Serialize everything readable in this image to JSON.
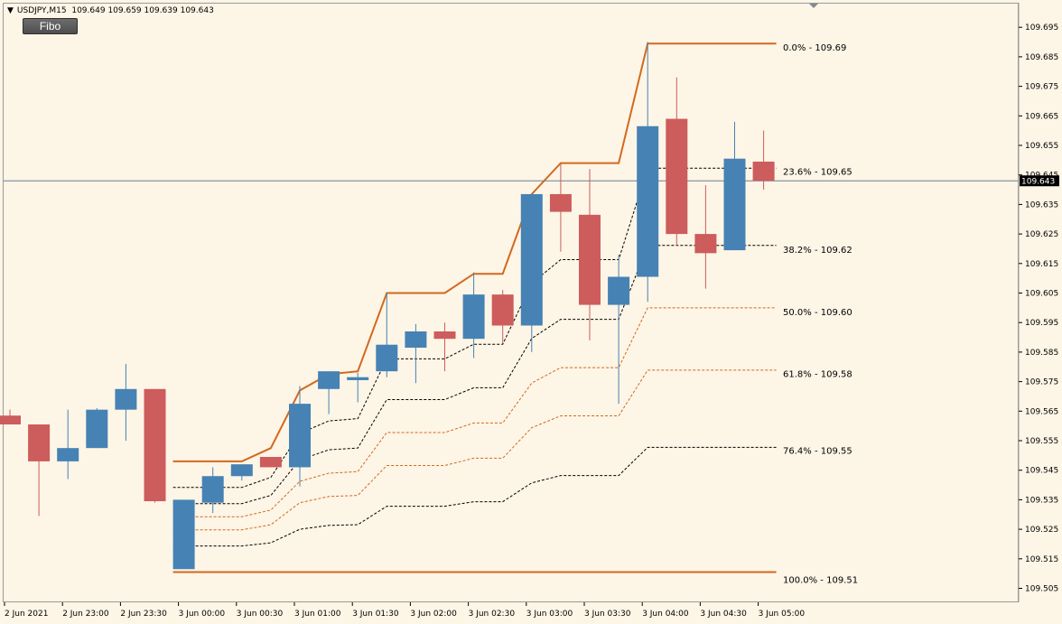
{
  "window": {
    "symbol_label": "USDJPY,M15",
    "ohlc_label": "109.649 109.659 109.639 109.643",
    "indicator_button": "Fibo"
  },
  "colors": {
    "background": "#fdf5e6",
    "bull": "#4682b4",
    "bear": "#cd5c5c",
    "fib_main": "#d2691e",
    "fib_dash": "#000000",
    "fib_dash_alt": "#d2691e",
    "price_line": "#6e7f8f"
  },
  "chart_data": {
    "type": "candlestick",
    "symbol": "USDJPY",
    "timeframe": "M15",
    "y_range": [
      109.5,
      109.7
    ],
    "y_ticks": [
      "109.695",
      "109.685",
      "109.675",
      "109.665",
      "109.655",
      "109.645",
      "109.635",
      "109.625",
      "109.615",
      "109.605",
      "109.595",
      "109.585",
      "109.575",
      "109.565",
      "109.555",
      "109.545",
      "109.535",
      "109.525",
      "109.515",
      "109.505"
    ],
    "x_labels": [
      "2 Jun 2021",
      "2 Jun 23:00",
      "2 Jun 23:30",
      "3 Jun 00:00",
      "3 Jun 00:30",
      "3 Jun 01:00",
      "3 Jun 01:30",
      "3 Jun 02:00",
      "3 Jun 02:30",
      "3 Jun 03:00",
      "3 Jun 03:30",
      "3 Jun 04:00",
      "3 Jun 04:30",
      "3 Jun 05:00"
    ],
    "current_price": "109.643",
    "candles": [
      {
        "o": 109.5635,
        "h": 109.5655,
        "l": 109.5605,
        "c": 109.5605
      },
      {
        "o": 109.5605,
        "h": 109.5605,
        "l": 109.5295,
        "c": 109.548
      },
      {
        "o": 109.548,
        "h": 109.5655,
        "l": 109.542,
        "c": 109.5525
      },
      {
        "o": 109.5525,
        "h": 109.566,
        "l": 109.5525,
        "c": 109.5655
      },
      {
        "o": 109.5655,
        "h": 109.581,
        "l": 109.555,
        "c": 109.5725
      },
      {
        "o": 109.5725,
        "h": 109.5725,
        "l": 109.534,
        "c": 109.5345
      },
      {
        "o": 109.5115,
        "h": 109.535,
        "l": 109.5115,
        "c": 109.535
      },
      {
        "o": 109.534,
        "h": 109.546,
        "l": 109.5305,
        "c": 109.543
      },
      {
        "o": 109.543,
        "h": 109.547,
        "l": 109.5415,
        "c": 109.547
      },
      {
        "o": 109.5495,
        "h": 109.5495,
        "l": 109.546,
        "c": 109.546
      },
      {
        "o": 109.546,
        "h": 109.5735,
        "l": 109.5395,
        "c": 109.5675
      },
      {
        "o": 109.5725,
        "h": 109.5785,
        "l": 109.564,
        "c": 109.5785
      },
      {
        "o": 109.5755,
        "h": 109.578,
        "l": 109.568,
        "c": 109.5765
      },
      {
        "o": 109.5785,
        "h": 109.605,
        "l": 109.5765,
        "c": 109.5875
      },
      {
        "o": 109.5865,
        "h": 109.5945,
        "l": 109.5745,
        "c": 109.592
      },
      {
        "o": 109.592,
        "h": 109.595,
        "l": 109.5785,
        "c": 109.5895
      },
      {
        "o": 109.5895,
        "h": 109.612,
        "l": 109.583,
        "c": 109.6045
      },
      {
        "o": 109.6045,
        "h": 109.606,
        "l": 109.588,
        "c": 109.594
      },
      {
        "o": 109.594,
        "h": 109.6385,
        "l": 109.585,
        "c": 109.6385
      },
      {
        "o": 109.6385,
        "h": 109.649,
        "l": 109.619,
        "c": 109.6325
      },
      {
        "o": 109.6315,
        "h": 109.647,
        "l": 109.589,
        "c": 109.601
      },
      {
        "o": 109.601,
        "h": 109.618,
        "l": 109.5675,
        "c": 109.6105
      },
      {
        "o": 109.6105,
        "h": 109.69,
        "l": 109.602,
        "c": 109.6615
      },
      {
        "o": 109.664,
        "h": 109.678,
        "l": 109.621,
        "c": 109.625
      },
      {
        "o": 109.625,
        "h": 109.6415,
        "l": 109.6065,
        "c": 109.6185
      },
      {
        "o": 109.6195,
        "h": 109.663,
        "l": 109.6195,
        "c": 109.6505
      },
      {
        "o": 109.6495,
        "h": 109.66,
        "l": 109.64,
        "c": 109.643
      }
    ],
    "fib_levels": [
      {
        "pct": "0.0%",
        "value": "109.69",
        "price": 109.6895,
        "label": "0.0% - 109.69"
      },
      {
        "pct": "23.6%",
        "value": "109.65",
        "price": 109.6475,
        "label": "23.6% - 109.65"
      },
      {
        "pct": "38.2%",
        "value": "109.62",
        "price": 109.621,
        "label": "38.2% - 109.62"
      },
      {
        "pct": "50.0%",
        "value": "109.60",
        "price": 109.6,
        "label": "50.0% - 109.60"
      },
      {
        "pct": "61.8%",
        "value": "109.58",
        "price": 109.579,
        "label": "61.8% - 109.58"
      },
      {
        "pct": "76.4%",
        "value": "109.55",
        "price": 109.553,
        "label": "76.4% - 109.55"
      },
      {
        "pct": "100.0%",
        "value": "109.51",
        "price": 109.5105,
        "label": "100.0% - 109.51"
      }
    ],
    "fib_high_steps": [
      [
        6,
        109.548
      ],
      [
        8,
        109.548
      ],
      [
        9,
        109.5525
      ],
      [
        10,
        109.572
      ],
      [
        11,
        109.5775
      ],
      [
        12,
        109.5785
      ],
      [
        13,
        109.605
      ],
      [
        15,
        109.605
      ],
      [
        16,
        109.6115
      ],
      [
        17,
        109.6115
      ],
      [
        18,
        109.6385
      ],
      [
        19,
        109.649
      ],
      [
        21,
        109.649
      ],
      [
        22,
        109.6895
      ],
      [
        26,
        109.6895
      ]
    ]
  }
}
